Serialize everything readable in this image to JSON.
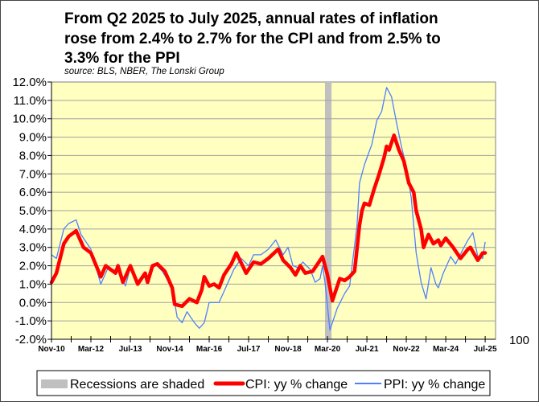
{
  "chart_data": {
    "type": "line",
    "title_lines": [
      "From Q2 2025 to July 2025, annual rates of inflation",
      "rose from 2.4% to 2.7% for the CPI and from 2.5% to",
      "3.3% for the PPI"
    ],
    "subtitle": "source: BLS, NBER, The Lonski Group",
    "xlabel": "",
    "ylabel": "",
    "ylim": [
      -2,
      12
    ],
    "xrange": [
      "2010-11",
      "2025-10"
    ],
    "grid": true,
    "yticks": [
      "-2.0%",
      "-1.0%",
      "0.0%",
      "1.0%",
      "2.0%",
      "3.0%",
      "4.0%",
      "5.0%",
      "6.0%",
      "7.0%",
      "8.0%",
      "9.0%",
      "10.0%",
      "11.0%",
      "12.0%"
    ],
    "xticks": [
      "Nov-10",
      "Mar-12",
      "Jul-13",
      "Nov-14",
      "Mar-16",
      "Jul-17",
      "Nov-18",
      "Mar-20",
      "Jul-21",
      "Nov-22",
      "Mar-24",
      "Jul-25"
    ],
    "right_axis_label": "100",
    "recessions": [
      [
        "2020-02",
        "2020-04"
      ]
    ],
    "legend_position": "bottom",
    "legend": {
      "recession": "Recessions are shaded",
      "cpi": "CPI: yy % change",
      "ppi": "PPI: yy % change"
    },
    "colors": {
      "plot_bg": "#FFFFC0",
      "cpi": "#FF0000",
      "ppi": "#4F7FFF",
      "recession": "#C0C0C0",
      "grid": "#A0A0A0"
    },
    "series": [
      {
        "name": "CPI: yy % change",
        "points": [
          [
            "2010-11",
            1.1
          ],
          [
            "2011-01",
            1.6
          ],
          [
            "2011-04",
            3.2
          ],
          [
            "2011-06",
            3.6
          ],
          [
            "2011-09",
            3.9
          ],
          [
            "2011-12",
            3.0
          ],
          [
            "2012-03",
            2.7
          ],
          [
            "2012-07",
            1.4
          ],
          [
            "2012-09",
            2.0
          ],
          [
            "2012-11",
            1.8
          ],
          [
            "2013-01",
            1.6
          ],
          [
            "2013-02",
            2.0
          ],
          [
            "2013-04",
            1.1
          ],
          [
            "2013-07",
            2.0
          ],
          [
            "2013-10",
            1.0
          ],
          [
            "2014-01",
            1.6
          ],
          [
            "2014-02",
            1.1
          ],
          [
            "2014-04",
            2.0
          ],
          [
            "2014-06",
            2.1
          ],
          [
            "2014-09",
            1.7
          ],
          [
            "2014-12",
            0.8
          ],
          [
            "2015-01",
            -0.1
          ],
          [
            "2015-04",
            -0.2
          ],
          [
            "2015-07",
            0.2
          ],
          [
            "2015-10",
            0.0
          ],
          [
            "2015-12",
            0.7
          ],
          [
            "2016-01",
            1.4
          ],
          [
            "2016-03",
            0.9
          ],
          [
            "2016-05",
            1.0
          ],
          [
            "2016-07",
            0.8
          ],
          [
            "2016-09",
            1.5
          ],
          [
            "2016-12",
            2.1
          ],
          [
            "2017-02",
            2.7
          ],
          [
            "2017-06",
            1.6
          ],
          [
            "2017-09",
            2.2
          ],
          [
            "2017-12",
            2.1
          ],
          [
            "2018-03",
            2.4
          ],
          [
            "2018-07",
            2.9
          ],
          [
            "2018-09",
            2.3
          ],
          [
            "2018-12",
            1.9
          ],
          [
            "2019-02",
            1.5
          ],
          [
            "2019-04",
            2.0
          ],
          [
            "2019-06",
            1.6
          ],
          [
            "2019-09",
            1.7
          ],
          [
            "2019-12",
            2.3
          ],
          [
            "2020-01",
            2.5
          ],
          [
            "2020-03",
            1.5
          ],
          [
            "2020-05",
            0.1
          ],
          [
            "2020-08",
            1.3
          ],
          [
            "2020-10",
            1.2
          ],
          [
            "2020-12",
            1.4
          ],
          [
            "2021-02",
            1.7
          ],
          [
            "2021-04",
            4.2
          ],
          [
            "2021-05",
            5.0
          ],
          [
            "2021-06",
            5.4
          ],
          [
            "2021-08",
            5.3
          ],
          [
            "2021-10",
            6.2
          ],
          [
            "2021-12",
            7.0
          ],
          [
            "2022-02",
            7.9
          ],
          [
            "2022-03",
            8.5
          ],
          [
            "2022-04",
            8.3
          ],
          [
            "2022-06",
            9.1
          ],
          [
            "2022-08",
            8.3
          ],
          [
            "2022-10",
            7.7
          ],
          [
            "2022-12",
            6.5
          ],
          [
            "2023-02",
            6.0
          ],
          [
            "2023-03",
            5.0
          ],
          [
            "2023-05",
            4.0
          ],
          [
            "2023-06",
            3.0
          ],
          [
            "2023-08",
            3.7
          ],
          [
            "2023-10",
            3.2
          ],
          [
            "2023-12",
            3.4
          ],
          [
            "2024-01",
            3.1
          ],
          [
            "2024-03",
            3.5
          ],
          [
            "2024-06",
            3.0
          ],
          [
            "2024-09",
            2.4
          ],
          [
            "2024-12",
            2.9
          ],
          [
            "2025-01",
            3.0
          ],
          [
            "2025-04",
            2.3
          ],
          [
            "2025-06",
            2.7
          ],
          [
            "2025-07",
            2.7
          ]
        ]
      },
      {
        "name": "PPI: yy % change",
        "points": [
          [
            "2010-11",
            2.6
          ],
          [
            "2011-01",
            2.4
          ],
          [
            "2011-04",
            4.0
          ],
          [
            "2011-06",
            4.3
          ],
          [
            "2011-09",
            4.5
          ],
          [
            "2011-11",
            3.7
          ],
          [
            "2012-03",
            2.9
          ],
          [
            "2012-07",
            1.0
          ],
          [
            "2012-10",
            1.9
          ],
          [
            "2013-02",
            1.7
          ],
          [
            "2013-05",
            0.9
          ],
          [
            "2013-07",
            1.9
          ],
          [
            "2013-10",
            1.2
          ],
          [
            "2014-03",
            1.5
          ],
          [
            "2014-05",
            2.1
          ],
          [
            "2014-08",
            1.7
          ],
          [
            "2014-12",
            0.8
          ],
          [
            "2015-02",
            -0.8
          ],
          [
            "2015-04",
            -1.1
          ],
          [
            "2015-06",
            -0.5
          ],
          [
            "2015-09",
            -1.1
          ],
          [
            "2015-11",
            -1.4
          ],
          [
            "2016-01",
            -1.1
          ],
          [
            "2016-03",
            0.0
          ],
          [
            "2016-07",
            0.0
          ],
          [
            "2016-10",
            0.9
          ],
          [
            "2017-01",
            1.8
          ],
          [
            "2017-04",
            2.4
          ],
          [
            "2017-07",
            2.0
          ],
          [
            "2017-09",
            2.6
          ],
          [
            "2017-12",
            2.6
          ],
          [
            "2018-03",
            2.9
          ],
          [
            "2018-06",
            3.4
          ],
          [
            "2018-09",
            2.6
          ],
          [
            "2018-11",
            3.0
          ],
          [
            "2019-01",
            2.0
          ],
          [
            "2019-03",
            1.9
          ],
          [
            "2019-05",
            2.2
          ],
          [
            "2019-08",
            1.8
          ],
          [
            "2019-10",
            1.1
          ],
          [
            "2019-12",
            1.3
          ],
          [
            "2020-01",
            2.0
          ],
          [
            "2020-02",
            1.1
          ],
          [
            "2020-04",
            -1.5
          ],
          [
            "2020-07",
            -0.3
          ],
          [
            "2020-10",
            0.5
          ],
          [
            "2020-12",
            0.9
          ],
          [
            "2021-03",
            4.2
          ],
          [
            "2021-04",
            6.5
          ],
          [
            "2021-06",
            7.5
          ],
          [
            "2021-09",
            8.6
          ],
          [
            "2021-11",
            9.9
          ],
          [
            "2022-01",
            10.4
          ],
          [
            "2022-03",
            11.7
          ],
          [
            "2022-05",
            11.2
          ],
          [
            "2022-07",
            9.8
          ],
          [
            "2022-09",
            8.5
          ],
          [
            "2022-11",
            7.4
          ],
          [
            "2023-01",
            5.7
          ],
          [
            "2023-03",
            2.7
          ],
          [
            "2023-05",
            1.1
          ],
          [
            "2023-07",
            0.2
          ],
          [
            "2023-09",
            1.9
          ],
          [
            "2023-11",
            1.0
          ],
          [
            "2023-12",
            0.8
          ],
          [
            "2024-02",
            1.6
          ],
          [
            "2024-05",
            2.5
          ],
          [
            "2024-07",
            2.1
          ],
          [
            "2024-10",
            2.9
          ],
          [
            "2024-12",
            3.4
          ],
          [
            "2025-02",
            3.8
          ],
          [
            "2025-04",
            2.5
          ],
          [
            "2025-06",
            2.4
          ],
          [
            "2025-07",
            3.3
          ]
        ]
      }
    ]
  }
}
